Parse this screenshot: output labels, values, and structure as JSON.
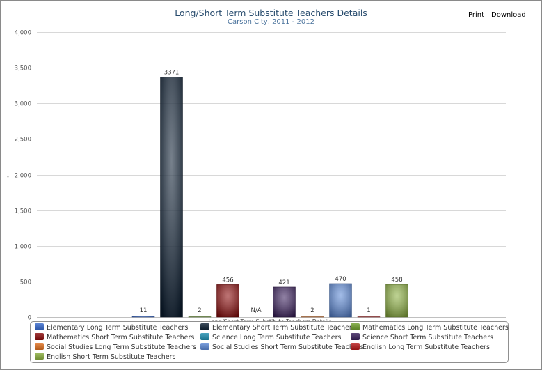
{
  "toolbar": {
    "print_label": "Print",
    "download_label": "Download"
  },
  "chart_data": {
    "type": "bar",
    "title": "Long/Short Term Substitute Teachers Details",
    "subtitle": "Carson City, 2011 - 2012",
    "xlabel": "Long/Short Term Substitute Teachers Details",
    "ylabel": "-",
    "ylim": [
      0,
      4000
    ],
    "yticks": [
      "0",
      "500",
      "1,000",
      "1,500",
      "2,000",
      "2,500",
      "3,000",
      "3,500",
      "4,000"
    ],
    "grid": true,
    "legend_position": "bottom",
    "series": [
      {
        "name": "Elementary Long Term Substitute Teachers",
        "value": 11,
        "label": "11",
        "color": "#3366cc"
      },
      {
        "name": "Elementary Short Term Substitute Teachers",
        "value": 3371,
        "label": "3371",
        "color": "#0d1f33"
      },
      {
        "name": "Mathematics Long Term Substitute Teachers",
        "value": 2,
        "label": "2",
        "color": "#6d9c2a"
      },
      {
        "name": "Mathematics Short Term Substitute Teachers",
        "value": 456,
        "label": "456",
        "color": "#8b0a0a"
      },
      {
        "name": "Science Long Term Substitute Teachers",
        "value": null,
        "label": "N/A",
        "color": "#1f8fb0"
      },
      {
        "name": "Science Short Term Substitute Teachers",
        "value": 421,
        "label": "421",
        "color": "#3a1f5c"
      },
      {
        "name": "Social Studies Long Term Substitute Teachers",
        "value": 2,
        "label": "2",
        "color": "#e07020"
      },
      {
        "name": "Social Studies Short Term Substitute Teachers",
        "value": 470,
        "label": "470",
        "color": "#5b88d6"
      },
      {
        "name": "English Long Term Substitute Teachers",
        "value": 1,
        "label": "1",
        "color": "#b81c1c"
      },
      {
        "name": "English Short Term Substitute Teachers",
        "value": 458,
        "label": "458",
        "color": "#8cb040"
      }
    ]
  }
}
